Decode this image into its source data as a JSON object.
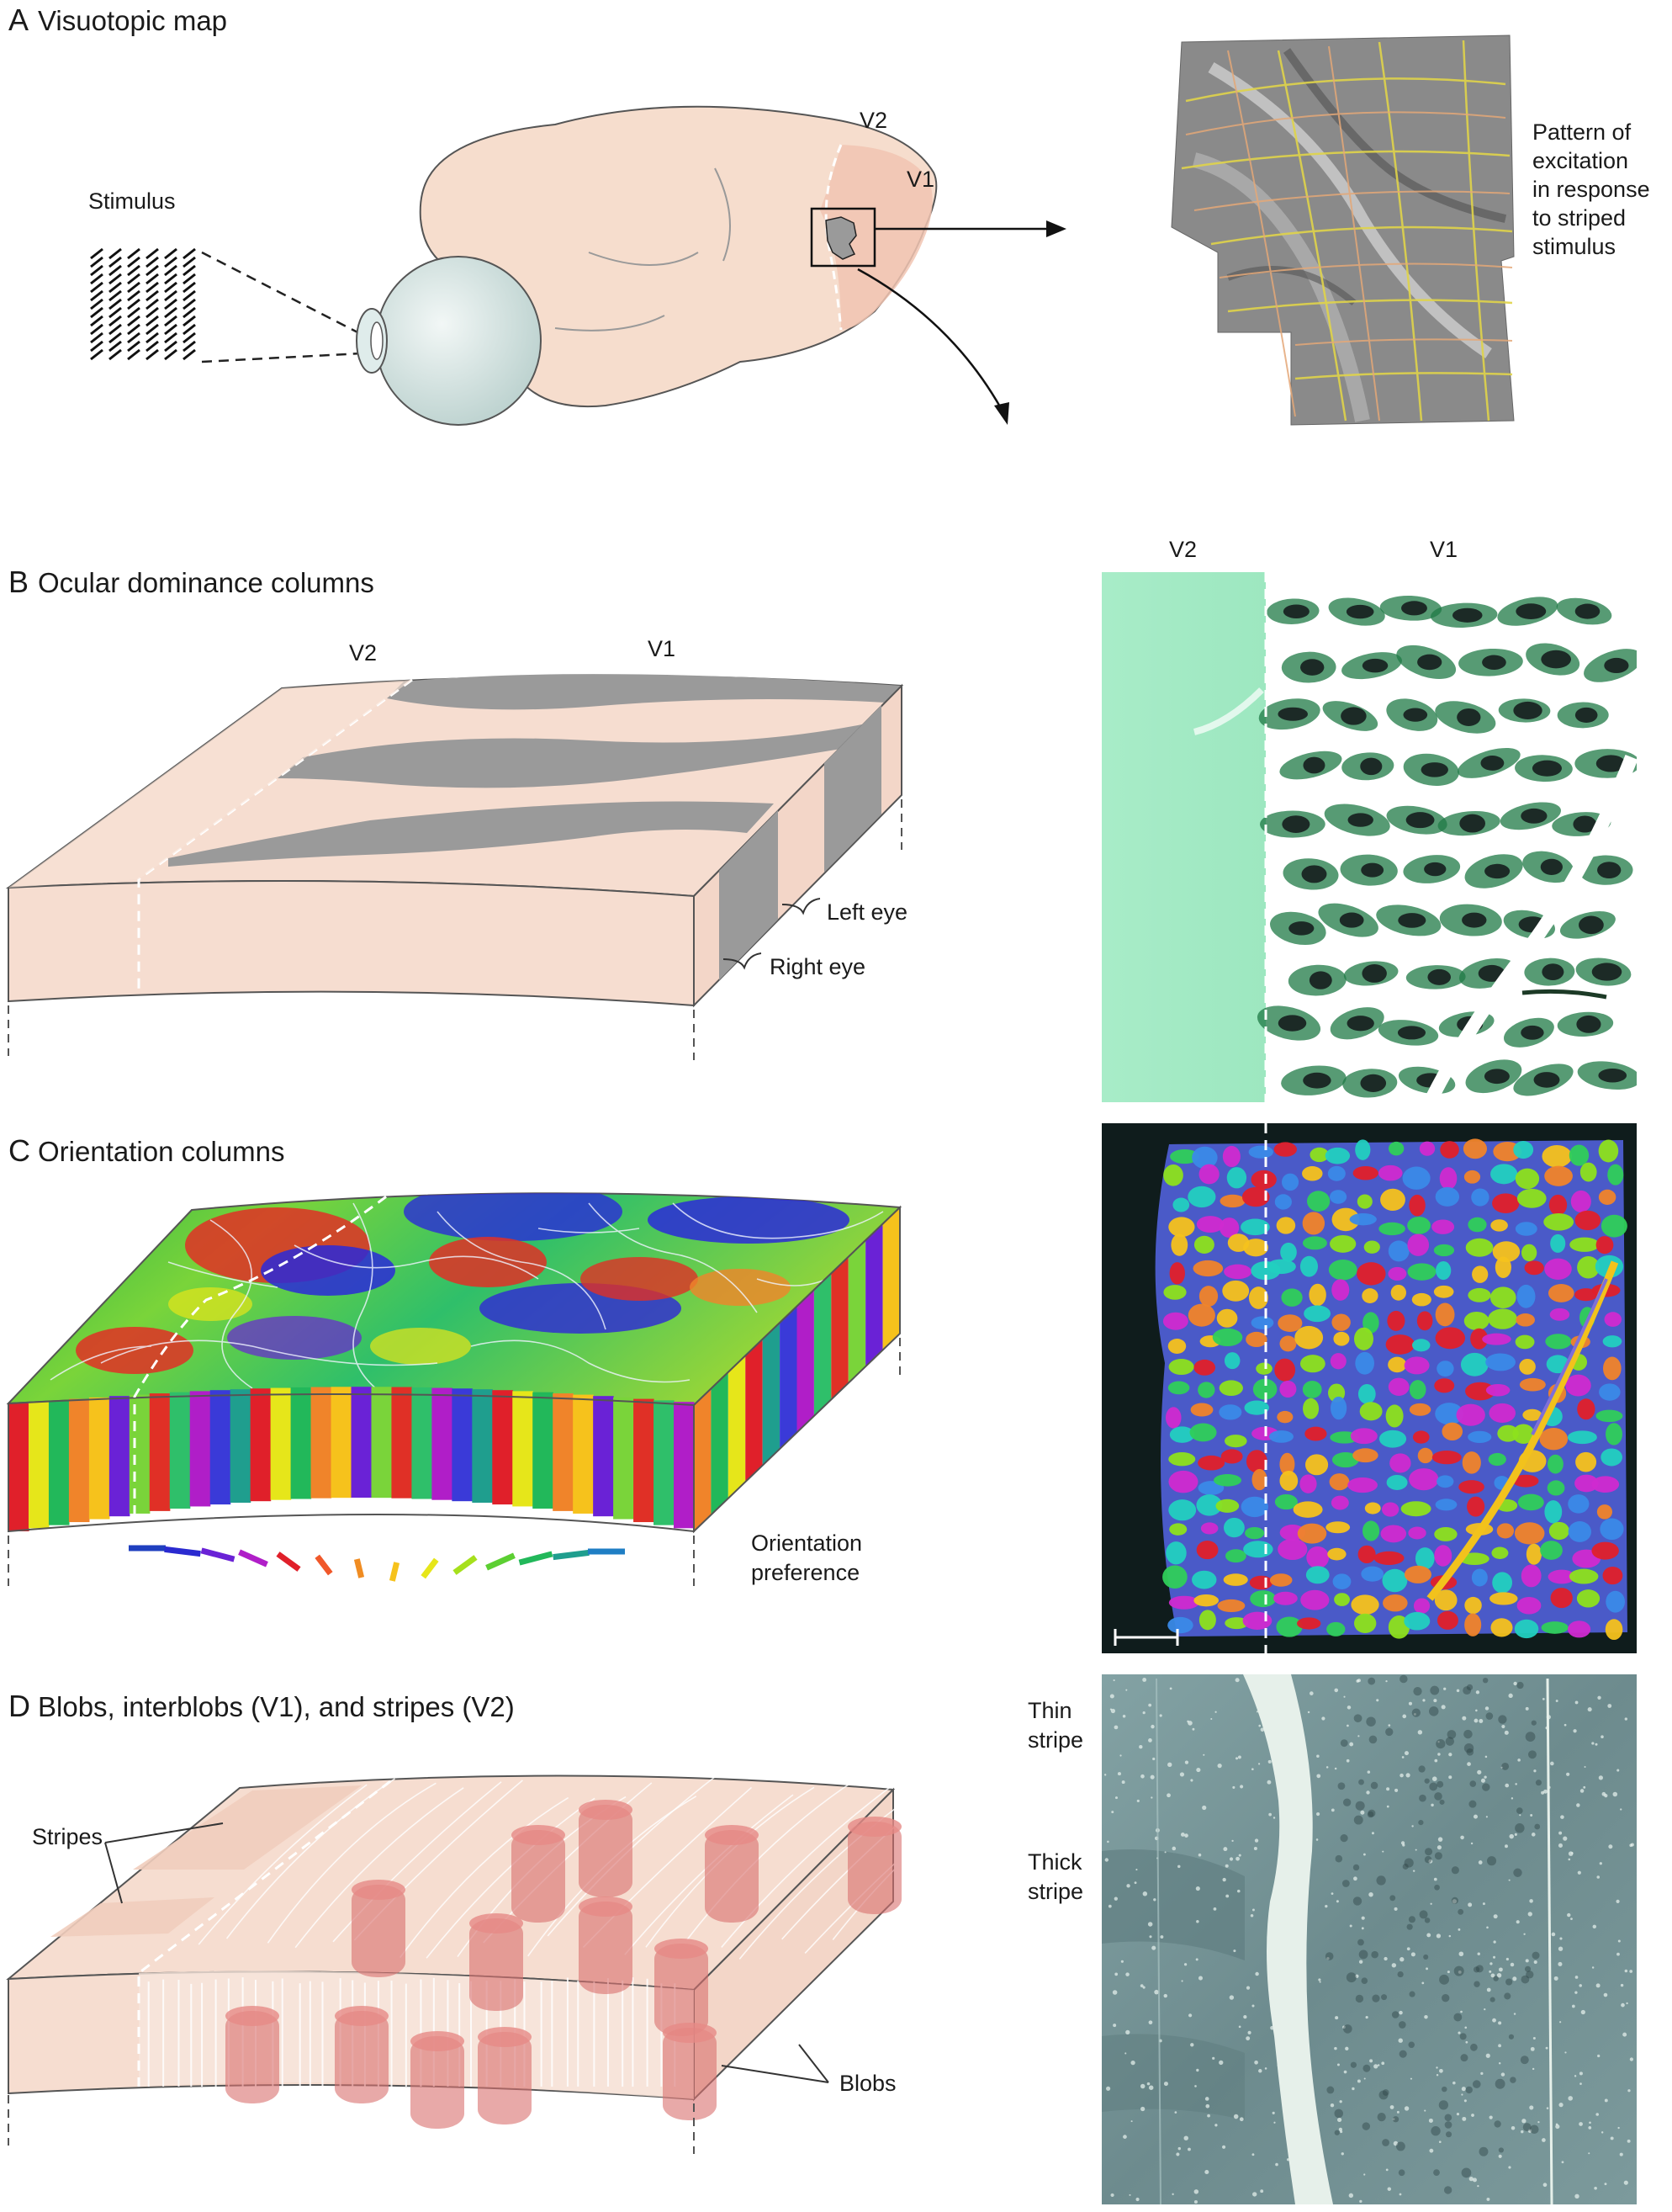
{
  "panel_a": {
    "letter": "A",
    "title": "Visuotopic map",
    "stimulus": "Stimulus",
    "v2": "V2",
    "v1": "V1",
    "caption_lines": [
      "Pattern of",
      "excitation",
      "in response",
      "to striped",
      "stimulus"
    ]
  },
  "panel_b": {
    "letter": "B",
    "title": "Ocular dominance columns",
    "v2": "V2",
    "v1": "V1",
    "left_eye": "Left eye",
    "right_eye": "Right eye",
    "image_v2": "V2",
    "image_v1": "V1"
  },
  "panel_c": {
    "letter": "C",
    "title": "Orientation columns",
    "pref_lines": [
      "Orientation",
      "preference"
    ],
    "orientation_colors": [
      "#1f3fbf",
      "#2a2ad0",
      "#6a22d6",
      "#b01ec8",
      "#e0202a",
      "#f0582a",
      "#f08c22",
      "#f6c21c",
      "#e6e61a",
      "#a6e01c",
      "#5ccf32",
      "#22b85a",
      "#1f9e8e",
      "#1f7ec4"
    ]
  },
  "panel_d": {
    "letter": "D",
    "title": "Blobs, interblobs (V1), and stripes (V2)",
    "stripes": "Stripes",
    "blobs": "Blobs",
    "thin_stripe_lines": [
      "Thin",
      "stripe"
    ],
    "thick_stripe_lines": [
      "Thick",
      "stripe"
    ]
  },
  "colors": {
    "tissue": "#f6ddd0",
    "tissue_dark": "#f1cfbf",
    "ocular_gray": "#9a9a9a",
    "blob_red": "#d9706e",
    "od_green": "#8fe3b6",
    "micro_gray": "#6f8d90"
  }
}
